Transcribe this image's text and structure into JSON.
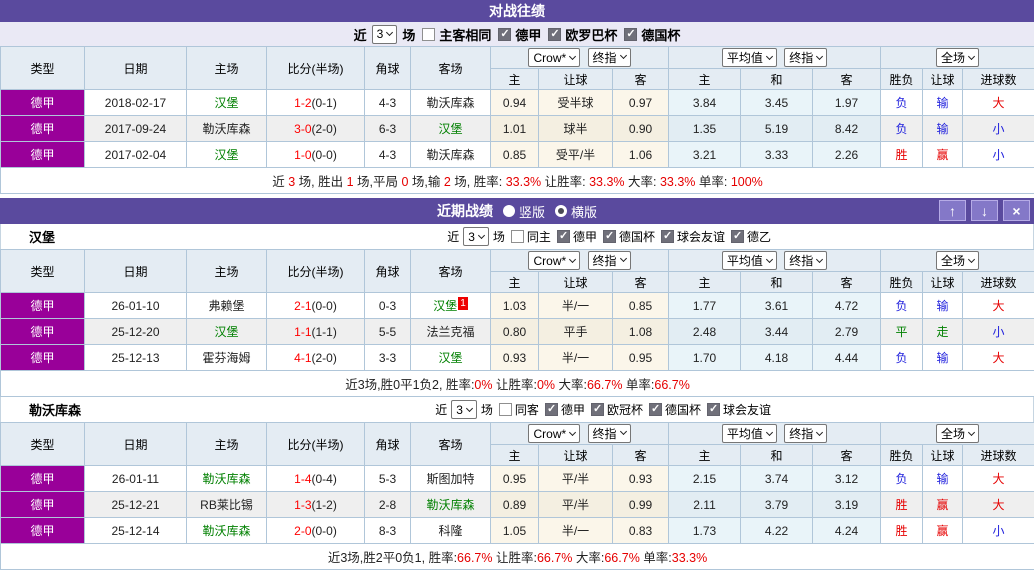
{
  "colors": {
    "title_bar": "#5a4a9e",
    "league_cell": "#990099",
    "header_bg": "#e4ecf3",
    "border": "#b0c6d9",
    "odds_col_bg": "#fbf6ea",
    "avg_col_bg": "#e9f4f9",
    "alt_row_bg": "#efefef",
    "win_red": "#e60000",
    "lose_blue": "#2222dd",
    "draw_green": "#008000",
    "score_red": "#ff0000"
  },
  "hl": {
    "type": "类型",
    "date": "日期",
    "home": "主场",
    "score": "比分(半场)",
    "corner": "角球",
    "away": "客场",
    "crow": "Crow*",
    "final": "终指",
    "avgsel": "平均值",
    "full": "全场",
    "sub": [
      "主",
      "让球",
      "客",
      "主",
      "和",
      "客",
      "胜负",
      "让球",
      "进球数"
    ]
  },
  "h2h": {
    "title": "对战往绩",
    "filter": {
      "near": "近",
      "count": "3",
      "games": "场",
      "same": {
        "label": "主客相同",
        "state": "off"
      },
      "leagues": [
        {
          "label": "德甲",
          "state": "on"
        },
        {
          "label": "欧罗巴杯",
          "state": "on"
        },
        {
          "label": "德国杯",
          "state": "on"
        }
      ]
    },
    "rows": [
      {
        "league": "德甲",
        "date": "2018-02-17",
        "home": "汉堡",
        "home_c": "green",
        "score": "1-2",
        "half": "(0-1)",
        "corner": "4-3",
        "away": "勒沃库森",
        "away_c": "black",
        "badge": "",
        "odds_h": "0.94",
        "handicap": "受半球",
        "odds_a": "0.97",
        "avg_h": "3.84",
        "avg_d": "3.45",
        "avg_a": "1.97",
        "res_wl": "负",
        "res_wl_c": "blue",
        "res_hc": "输",
        "res_hc_c": "blue",
        "res_goal": "大",
        "res_goal_c": "red"
      },
      {
        "league": "德甲",
        "date": "2017-09-24",
        "home": "勒沃库森",
        "home_c": "black",
        "score": "3-0",
        "half": "(2-0)",
        "corner": "6-3",
        "away": "汉堡",
        "away_c": "green",
        "badge": "",
        "odds_h": "1.01",
        "handicap": "球半",
        "odds_a": "0.90",
        "avg_h": "1.35",
        "avg_d": "5.19",
        "avg_a": "8.42",
        "res_wl": "负",
        "res_wl_c": "blue",
        "res_hc": "输",
        "res_hc_c": "blue",
        "res_goal": "小",
        "res_goal_c": "blue"
      },
      {
        "league": "德甲",
        "date": "2017-02-04",
        "home": "汉堡",
        "home_c": "green",
        "score": "1-0",
        "half": "(0-0)",
        "corner": "4-3",
        "away": "勒沃库森",
        "away_c": "black",
        "badge": "",
        "odds_h": "0.85",
        "handicap": "受平/半",
        "odds_a": "1.06",
        "avg_h": "3.21",
        "avg_d": "3.33",
        "avg_a": "2.26",
        "res_wl": "胜",
        "res_wl_c": "red",
        "res_hc": "赢",
        "res_hc_c": "red",
        "res_goal": "小",
        "res_goal_c": "blue"
      }
    ],
    "summary": [
      {
        "t": "近 ",
        "c": "black"
      },
      {
        "t": "3",
        "c": "red"
      },
      {
        "t": " 场, 胜出 ",
        "c": "black"
      },
      {
        "t": "1",
        "c": "red"
      },
      {
        "t": " 场,平局 ",
        "c": "black"
      },
      {
        "t": "0",
        "c": "red"
      },
      {
        "t": " 场,输 ",
        "c": "black"
      },
      {
        "t": "2",
        "c": "red"
      },
      {
        "t": " 场, 胜率: ",
        "c": "black"
      },
      {
        "t": "33.3%",
        "c": "red"
      },
      {
        "t": " 让胜率: ",
        "c": "black"
      },
      {
        "t": "33.3%",
        "c": "red"
      },
      {
        "t": " 大率: ",
        "c": "black"
      },
      {
        "t": "33.3%",
        "c": "red"
      },
      {
        "t": " 单率: ",
        "c": "black"
      },
      {
        "t": "100%",
        "c": "red"
      }
    ]
  },
  "recent": {
    "title": "近期战绩",
    "layout_options": [
      {
        "label": "竖版",
        "state": "off"
      },
      {
        "label": "横版",
        "state": "on"
      }
    ],
    "controls": {
      "up": "↑",
      "down": "↓",
      "close": "×"
    }
  },
  "hamburg": {
    "team": "汉堡",
    "filter": {
      "near": "近",
      "count": "3",
      "games": "场",
      "same": {
        "label": "同主",
        "state": "off"
      },
      "leagues": [
        {
          "label": "德甲",
          "state": "on"
        },
        {
          "label": "德国杯",
          "state": "on"
        },
        {
          "label": "球会友谊",
          "state": "on"
        },
        {
          "label": "德乙",
          "state": "on"
        }
      ]
    },
    "rows": [
      {
        "league": "德甲",
        "date": "26-01-10",
        "home": "弗赖堡",
        "home_c": "black",
        "score": "2-1",
        "half": "(0-0)",
        "corner": "0-3",
        "away": "汉堡",
        "away_c": "green",
        "badge": "1",
        "odds_h": "1.03",
        "handicap": "半/一",
        "odds_a": "0.85",
        "avg_h": "1.77",
        "avg_d": "3.61",
        "avg_a": "4.72",
        "res_wl": "负",
        "res_wl_c": "blue",
        "res_hc": "输",
        "res_hc_c": "blue",
        "res_goal": "大",
        "res_goal_c": "red"
      },
      {
        "league": "德甲",
        "date": "25-12-20",
        "home": "汉堡",
        "home_c": "green",
        "score": "1-1",
        "half": "(1-1)",
        "corner": "5-5",
        "away": "法兰克福",
        "away_c": "black",
        "badge": "",
        "odds_h": "0.80",
        "handicap": "平手",
        "odds_a": "1.08",
        "avg_h": "2.48",
        "avg_d": "3.44",
        "avg_a": "2.79",
        "res_wl": "平",
        "res_wl_c": "green",
        "res_hc": "走",
        "res_hc_c": "green",
        "res_goal": "小",
        "res_goal_c": "blue"
      },
      {
        "league": "德甲",
        "date": "25-12-13",
        "home": "霍芬海姆",
        "home_c": "black",
        "score": "4-1",
        "half": "(2-0)",
        "corner": "3-3",
        "away": "汉堡",
        "away_c": "green",
        "badge": "",
        "odds_h": "0.93",
        "handicap": "半/一",
        "odds_a": "0.95",
        "avg_h": "1.70",
        "avg_d": "4.18",
        "avg_a": "4.44",
        "res_wl": "负",
        "res_wl_c": "blue",
        "res_hc": "输",
        "res_hc_c": "blue",
        "res_goal": "大",
        "res_goal_c": "red"
      }
    ],
    "summary": [
      {
        "t": "近3场,胜0平1负2, 胜率:",
        "c": "black"
      },
      {
        "t": "0%",
        "c": "red"
      },
      {
        "t": " 让胜率:",
        "c": "black"
      },
      {
        "t": "0%",
        "c": "red"
      },
      {
        "t": " 大率:",
        "c": "black"
      },
      {
        "t": "66.7%",
        "c": "red"
      },
      {
        "t": " 单率:",
        "c": "black"
      },
      {
        "t": "66.7%",
        "c": "red"
      }
    ]
  },
  "leverkusen": {
    "team": "勒沃库森",
    "filter": {
      "near": "近",
      "count": "3",
      "games": "场",
      "same": {
        "label": "同客",
        "state": "off"
      },
      "leagues": [
        {
          "label": "德甲",
          "state": "on"
        },
        {
          "label": "欧冠杯",
          "state": "on"
        },
        {
          "label": "德国杯",
          "state": "on"
        },
        {
          "label": "球会友谊",
          "state": "on"
        }
      ]
    },
    "rows": [
      {
        "league": "德甲",
        "date": "26-01-11",
        "home": "勒沃库森",
        "home_c": "green",
        "score": "1-4",
        "half": "(0-4)",
        "corner": "5-3",
        "away": "斯图加特",
        "away_c": "black",
        "badge": "",
        "odds_h": "0.95",
        "handicap": "平/半",
        "odds_a": "0.93",
        "avg_h": "2.15",
        "avg_d": "3.74",
        "avg_a": "3.12",
        "res_wl": "负",
        "res_wl_c": "blue",
        "res_hc": "输",
        "res_hc_c": "blue",
        "res_goal": "大",
        "res_goal_c": "red"
      },
      {
        "league": "德甲",
        "date": "25-12-21",
        "home": "RB莱比锡",
        "home_c": "black",
        "score": "1-3",
        "half": "(1-2)",
        "corner": "2-8",
        "away": "勒沃库森",
        "away_c": "green",
        "badge": "",
        "odds_h": "0.89",
        "handicap": "平/半",
        "odds_a": "0.99",
        "avg_h": "2.11",
        "avg_d": "3.79",
        "avg_a": "3.19",
        "res_wl": "胜",
        "res_wl_c": "red",
        "res_hc": "赢",
        "res_hc_c": "red",
        "res_goal": "大",
        "res_goal_c": "red"
      },
      {
        "league": "德甲",
        "date": "25-12-14",
        "home": "勒沃库森",
        "home_c": "green",
        "score": "2-0",
        "half": "(0-0)",
        "corner": "8-3",
        "away": "科隆",
        "away_c": "black",
        "badge": "",
        "odds_h": "1.05",
        "handicap": "半/一",
        "odds_a": "0.83",
        "avg_h": "1.73",
        "avg_d": "4.22",
        "avg_a": "4.24",
        "res_wl": "胜",
        "res_wl_c": "red",
        "res_hc": "赢",
        "res_hc_c": "red",
        "res_goal": "小",
        "res_goal_c": "blue"
      }
    ],
    "summary": [
      {
        "t": "近3场,胜2平0负1, 胜率:",
        "c": "black"
      },
      {
        "t": "66.7%",
        "c": "red"
      },
      {
        "t": " 让胜率:",
        "c": "black"
      },
      {
        "t": "66.7%",
        "c": "red"
      },
      {
        "t": " 大率:",
        "c": "black"
      },
      {
        "t": "66.7%",
        "c": "red"
      },
      {
        "t": " 单率:",
        "c": "black"
      },
      {
        "t": "33.3%",
        "c": "red"
      }
    ]
  }
}
